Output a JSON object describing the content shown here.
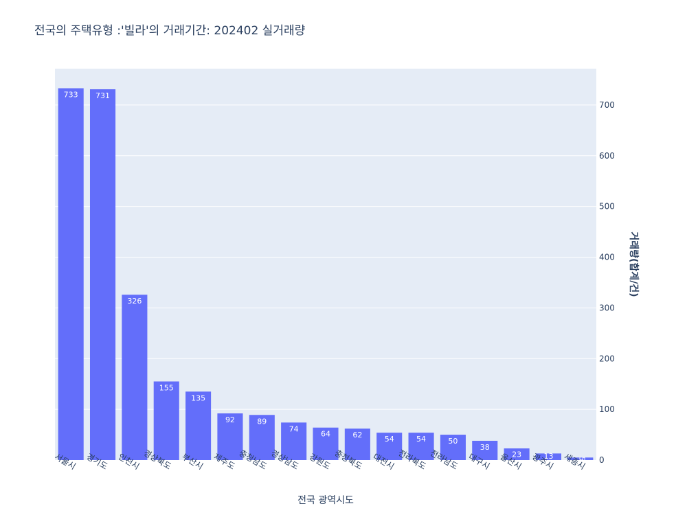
{
  "chart_data": {
    "type": "bar",
    "title": "전국의 주택유형 :'빌라'의 거래기간: 202402 실거래량",
    "xlabel": "전국 광역시도",
    "ylabel": "거래량(합계/건)",
    "categories": [
      "서울시",
      "경기도",
      "인천시",
      "경상북도",
      "부산시",
      "제주도",
      "충청남도",
      "경상남도",
      "강원도",
      "충청북도",
      "대전시",
      "전라북도",
      "전라남도",
      "대구시",
      "울산시",
      "광주시",
      "세종시"
    ],
    "values": [
      733,
      731,
      326,
      155,
      135,
      92,
      89,
      74,
      64,
      62,
      54,
      54,
      50,
      38,
      23,
      13,
      5
    ],
    "value_labels": [
      "733",
      "731",
      "326",
      "155",
      "135",
      "92",
      "89",
      "74",
      "64",
      "62",
      "54",
      "54",
      "50",
      "38",
      "23",
      "13",
      "5"
    ],
    "ylim": [
      0,
      771.6
    ],
    "yticks": [
      0,
      100,
      200,
      300,
      400,
      500,
      600,
      700
    ],
    "ytick_labels": [
      "0",
      "100",
      "200",
      "300",
      "400",
      "500",
      "600",
      "700"
    ],
    "y_axis_side": "right",
    "grid": true,
    "colors": {
      "bar": "#636efa",
      "plot_bg": "#e5ecf6",
      "grid": "#ffffff",
      "text": "#2a3f5f"
    }
  }
}
